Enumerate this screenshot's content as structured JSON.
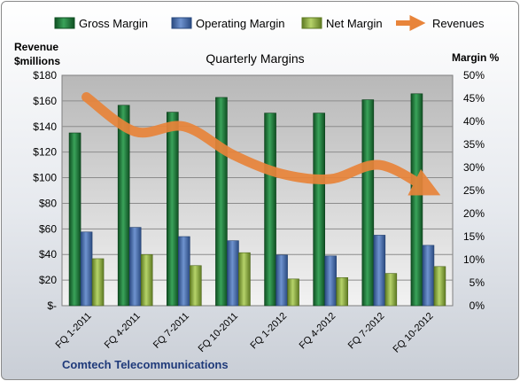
{
  "chart_data": {
    "type": "bar",
    "title": "Quarterly Margins",
    "company": "Comtech Telecommunications",
    "left_axis_label": [
      "Revenue",
      "$millions"
    ],
    "right_axis_label": "Margin %",
    "categories": [
      "FQ 1-2011",
      "FQ 4-2011",
      "FQ 7-2011",
      "FQ 10-2011",
      "FQ 1-2012",
      "FQ 4-2012",
      "FQ 7-2012",
      "FQ 10-2012"
    ],
    "left_ticks": [
      "$-",
      "$20",
      "$40",
      "$60",
      "$80",
      "$100",
      "$120",
      "$140",
      "$160",
      "$180"
    ],
    "right_ticks": [
      "0%",
      "5%",
      "10%",
      "15%",
      "20%",
      "25%",
      "30%",
      "35%",
      "40%",
      "45%",
      "50%"
    ],
    "left_ylim": [
      0,
      180
    ],
    "right_ylim": [
      0,
      50
    ],
    "grid": true,
    "legend_position": "top",
    "series": [
      {
        "name": "Gross Margin",
        "kind": "bar",
        "axis": "right",
        "color": "#1f7a3a",
        "values": [
          37.5,
          43.5,
          42,
          45.2,
          41.8,
          41.8,
          44.7,
          46
        ]
      },
      {
        "name": "Operating Margin",
        "kind": "bar",
        "axis": "right",
        "color": "#4a6fb0",
        "values": [
          16,
          17,
          15,
          14.1,
          11,
          10.8,
          15.3,
          13.1
        ]
      },
      {
        "name": "Net Margin",
        "kind": "bar",
        "axis": "right",
        "color": "#8ab040",
        "values": [
          10.2,
          11.1,
          8.7,
          11.5,
          5.8,
          6.1,
          7,
          8.5
        ]
      },
      {
        "name": "Revenues",
        "kind": "line",
        "axis": "left",
        "color": "#e8843a",
        "values": [
          163,
          136,
          140,
          118,
          103,
          99,
          110,
          91
        ]
      }
    ]
  }
}
